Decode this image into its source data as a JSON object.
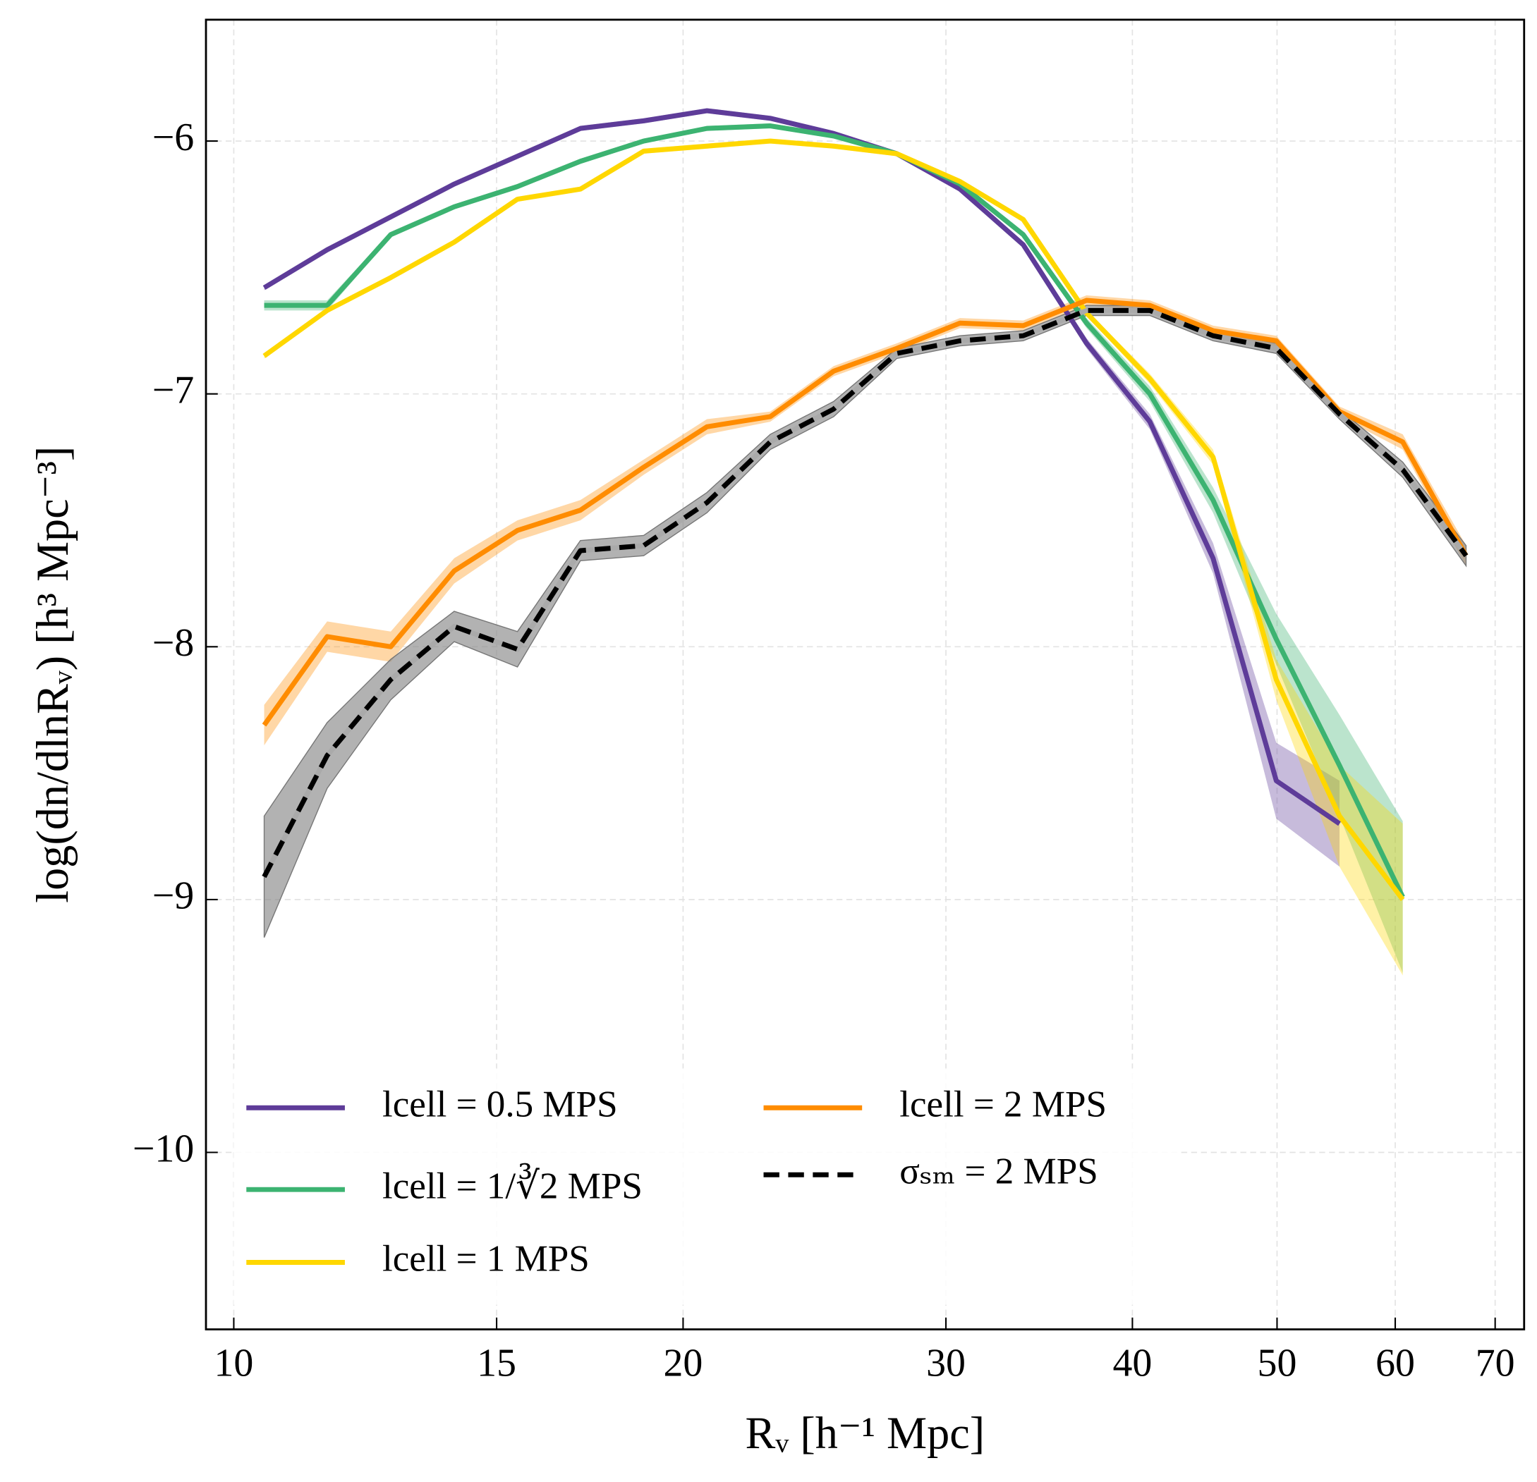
{
  "chart_data": {
    "type": "line",
    "xlabel": "Rᵥ [h⁻¹ Mpc]",
    "ylabel": "log(dn/dlnRᵥ) [h³ Mpc⁻³]",
    "x": [
      10.48,
      11.55,
      12.74,
      14.05,
      15.49,
      17.07,
      18.82,
      20.75,
      22.88,
      25.23,
      27.81,
      30.66,
      33.8,
      37.27,
      41.09,
      45.3,
      49.94,
      55.06,
      60.7,
      66.93
    ],
    "xlog": true,
    "xlim": [
      9.58,
      73.2
    ],
    "xticks": [
      10,
      15,
      20,
      30,
      40,
      50,
      60,
      70
    ],
    "ylim": [
      -10.7,
      -5.52
    ],
    "yticks": [
      {
        "value": -10,
        "label": "−10"
      },
      {
        "value": -9,
        "label": "−9"
      },
      {
        "value": -8,
        "label": "−8"
      },
      {
        "value": -7,
        "label": "−7"
      },
      {
        "value": -6,
        "label": "−6"
      }
    ],
    "grid": true,
    "legend": "lower left",
    "series": [
      {
        "name": "lcell = 0.5 MPS",
        "color": "#5e3c99",
        "dashed": false,
        "values": [
          -6.58,
          -6.43,
          -6.3,
          -6.17,
          -6.06,
          -5.95,
          -5.92,
          -5.88,
          -5.91,
          -5.97,
          -6.05,
          -6.19,
          -6.41,
          -6.8,
          -7.11,
          -7.65,
          -8.53,
          -8.7,
          null,
          null
        ],
        "errors": [
          0.01,
          0.01,
          0.01,
          0.01,
          0.01,
          0.01,
          0.01,
          0.01,
          0.01,
          0.01,
          0.01,
          0.01,
          0.01,
          0.02,
          0.03,
          0.06,
          0.15,
          0.17,
          null,
          null
        ]
      },
      {
        "name": "lcell = 1/∛2 MPS",
        "color": "#3cb371",
        "dashed": false,
        "values": [
          -6.65,
          -6.65,
          -6.37,
          -6.26,
          -6.18,
          -6.08,
          -6.0,
          -5.95,
          -5.94,
          -5.98,
          -6.05,
          -6.17,
          -6.37,
          -6.72,
          -7.0,
          -7.42,
          -7.97,
          -8.47,
          -8.99,
          null
        ],
        "errors": [
          0.02,
          0.02,
          0.01,
          0.01,
          0.01,
          0.01,
          0.01,
          0.01,
          0.01,
          0.01,
          0.01,
          0.01,
          0.01,
          0.02,
          0.03,
          0.05,
          0.1,
          0.2,
          0.3,
          null
        ]
      },
      {
        "name": "lcell = 1 MPS",
        "color": "#ffd700",
        "dashed": false,
        "values": [
          -6.85,
          -6.67,
          -6.54,
          -6.4,
          -6.23,
          -6.19,
          -6.04,
          -6.02,
          -6.0,
          -6.02,
          -6.05,
          -6.16,
          -6.31,
          -6.68,
          -6.94,
          -7.25,
          -8.13,
          -8.67,
          -9.0,
          null
        ],
        "errors": [
          0.01,
          0.01,
          0.01,
          0.01,
          0.01,
          0.01,
          0.01,
          0.01,
          0.01,
          0.01,
          0.01,
          0.01,
          0.01,
          0.01,
          0.02,
          0.03,
          0.08,
          0.2,
          0.3,
          null
        ]
      },
      {
        "name": "lcell = 2 MPS",
        "color": "#ff8c00",
        "dashed": false,
        "values": [
          -8.31,
          -7.96,
          -8.0,
          -7.7,
          -7.54,
          -7.46,
          -7.29,
          -7.13,
          -7.09,
          -6.91,
          -6.82,
          -6.72,
          -6.73,
          -6.63,
          -6.65,
          -6.75,
          -6.79,
          -7.07,
          -7.19,
          -7.64
        ],
        "errors": [
          0.08,
          0.06,
          0.06,
          0.05,
          0.04,
          0.04,
          0.03,
          0.03,
          0.02,
          0.02,
          0.02,
          0.02,
          0.02,
          0.02,
          0.02,
          0.02,
          0.02,
          0.02,
          0.03,
          0.04
        ]
      },
      {
        "name": "σₛₘ = 2 MPS",
        "color": "#000000",
        "dashed": true,
        "values": [
          -8.91,
          -8.43,
          -8.13,
          -7.92,
          -8.01,
          -7.62,
          -7.6,
          -7.43,
          -7.19,
          -7.06,
          -6.84,
          -6.79,
          -6.77,
          -6.67,
          -6.67,
          -6.77,
          -6.82,
          -7.08,
          -7.3,
          -7.64
        ],
        "errors": [
          0.24,
          0.13,
          0.08,
          0.06,
          0.07,
          0.04,
          0.04,
          0.04,
          0.03,
          0.03,
          0.02,
          0.02,
          0.02,
          0.02,
          0.02,
          0.02,
          0.02,
          0.02,
          0.03,
          0.04
        ]
      }
    ]
  }
}
